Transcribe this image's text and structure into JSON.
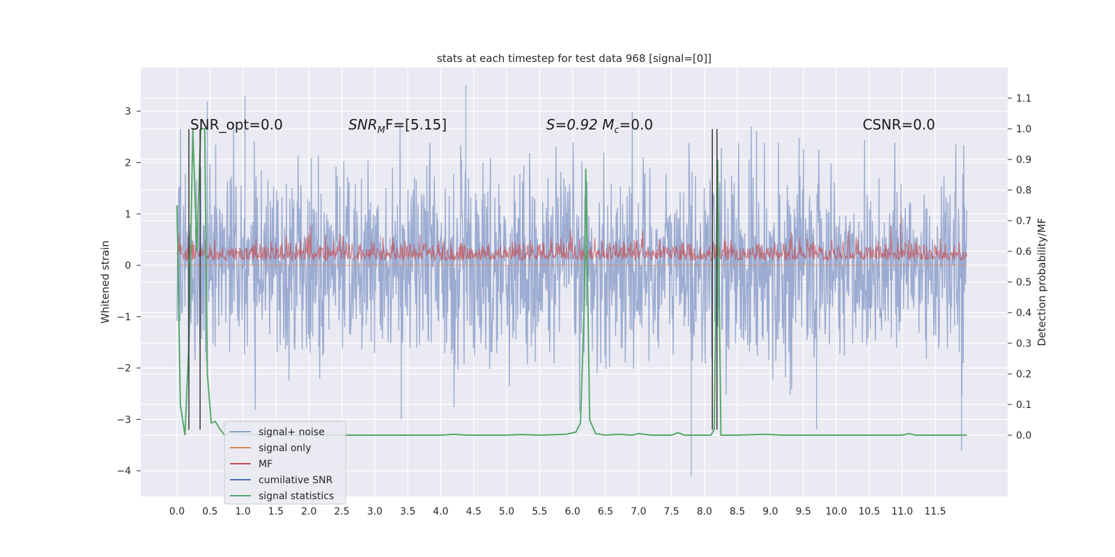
{
  "chart_data": {
    "type": "line",
    "title": "stats at each timestep for test data 968 [signal=[0]]",
    "ylabel": "Whitened strain",
    "ylabel_right": "Detection probability/MF",
    "xlim": [
      -0.55,
      12.6
    ],
    "ylim": [
      -4.5,
      3.85
    ],
    "ylim_right": [
      -0.2,
      1.2
    ],
    "x_ticks": [
      0.0,
      0.5,
      1.0,
      1.5,
      2.0,
      2.5,
      3.0,
      3.5,
      4.0,
      4.5,
      5.0,
      5.5,
      6.0,
      6.5,
      7.0,
      7.5,
      8.0,
      8.5,
      9.0,
      9.5,
      10.0,
      10.5,
      11.0,
      11.5
    ],
    "x_tick_labels": [
      "0.0",
      "0.5",
      "1.0",
      "1.5",
      "2.0",
      "2.5",
      "3.0",
      "3.5",
      "4.0",
      "4.5",
      "5.0",
      "5.5",
      "6.0",
      "6.5",
      "7.0",
      "7.5",
      "8.0",
      "8.5",
      "9.0",
      "9.5",
      "10.0",
      "10.5",
      "11.0",
      "11.5"
    ],
    "y_ticks": [
      3,
      2,
      1,
      0,
      -1,
      -2,
      -3,
      -4
    ],
    "y_tick_labels": [
      "3",
      "2",
      "1",
      "0",
      "−1",
      "−2",
      "−3",
      "−4"
    ],
    "y_right_ticks": [
      1.1,
      1.0,
      0.9,
      0.8,
      0.7,
      0.6,
      0.5,
      0.4,
      0.3,
      0.2,
      0.1,
      0.0
    ],
    "y_right_tick_labels": [
      "1.1",
      "1.0",
      "0.9",
      "0.8",
      "0.7",
      "0.6",
      "0.5",
      "0.4",
      "0.3",
      "0.2",
      "0.1",
      "0.0"
    ],
    "grid": true,
    "annotations": [
      {
        "text": "SNR_opt=0.0",
        "x": 0.2,
        "y": 2.75
      },
      {
        "text": "SNR_MF=[5.15]",
        "x": 2.6,
        "y": 2.75
      },
      {
        "text": "S=0.92   M_c=0.0",
        "x": 5.6,
        "y": 2.75
      },
      {
        "text": "CSNR=0.0",
        "x": 10.4,
        "y": 2.75
      }
    ],
    "colors": {
      "noise": "#8da0cb",
      "signal": "#dd8452",
      "mf": "#c44e52",
      "cumulative": "#4c72b0",
      "stats": "#55a868",
      "vlines": "#333333",
      "axes_bg": "#eaeaf2"
    },
    "series": [
      {
        "name": "signal+ noise",
        "axis": "left",
        "x_range": [
          0.0,
          11.98
        ],
        "envelope_typical": [
          -2.4,
          2.4
        ],
        "extremes": [
          {
            "x": 0.46,
            "y": 3.2
          },
          {
            "x": 4.38,
            "y": 3.5
          },
          {
            "x": 1.03,
            "y": 3.3
          },
          {
            "x": 7.8,
            "y": -4.1
          },
          {
            "x": 11.9,
            "y": -3.6
          },
          {
            "x": 3.4,
            "y": -3.0
          },
          {
            "x": 9.7,
            "y": -3.2
          }
        ]
      },
      {
        "name": "signal only",
        "axis": "left",
        "x": [
          0.0,
          11.98
        ],
        "y": [
          0.0,
          0.0
        ]
      },
      {
        "name": "MF",
        "axis": "right",
        "baseline": 0.6,
        "x_range": [
          0.0,
          11.98
        ],
        "envelope_typical": [
          0.55,
          0.68
        ],
        "spikes": [
          {
            "x": 10.98,
            "y": 0.72
          }
        ]
      },
      {
        "name": "cumilative SNR",
        "axis": "right",
        "x": [],
        "y": []
      },
      {
        "name": "signal statistics",
        "axis": "right",
        "x": [
          0.0,
          0.05,
          0.12,
          0.18,
          0.24,
          0.3,
          0.36,
          0.42,
          0.46,
          0.52,
          0.58,
          0.65,
          0.72,
          0.8,
          1.0,
          1.5,
          2.0,
          3.0,
          4.0,
          4.2,
          4.4,
          5.0,
          5.2,
          5.5,
          5.9,
          6.05,
          6.12,
          6.18,
          6.2,
          6.26,
          6.35,
          6.5,
          6.7,
          6.9,
          7.0,
          7.2,
          7.5,
          7.6,
          7.7,
          7.8,
          8.1,
          8.15,
          8.2,
          8.25,
          8.3,
          8.5,
          8.9,
          9.2,
          10.0,
          11.0,
          11.1,
          11.2,
          11.5,
          11.98
        ],
        "y": [
          0.75,
          0.1,
          0.0,
          0.3,
          1.0,
          0.6,
          1.0,
          1.0,
          0.2,
          0.04,
          0.045,
          0.02,
          0.0,
          0.01,
          0.003,
          0.0,
          0.0,
          0.0,
          0.0,
          0.003,
          0.0,
          0.0,
          0.002,
          0.0,
          0.003,
          0.01,
          0.04,
          0.45,
          0.87,
          0.05,
          0.005,
          0.0,
          0.003,
          0.0,
          0.005,
          0.0,
          0.0,
          0.008,
          0.0,
          0.0,
          0.0,
          0.02,
          0.9,
          0.0,
          0.0,
          0.0,
          0.003,
          0.0,
          0.0,
          0.0,
          0.005,
          0.0,
          0.0,
          0.0
        ]
      }
    ],
    "vlines": [
      {
        "x": 0.18,
        "ymin": -3.2,
        "ymax": 2.65
      },
      {
        "x": 0.35,
        "ymin": -3.2,
        "ymax": 2.65
      },
      {
        "x": 8.12,
        "ymin": -3.2,
        "ymax": 2.65
      },
      {
        "x": 8.19,
        "ymin": -3.2,
        "ymax": 2.65
      }
    ],
    "legend": {
      "placement": "lower-left",
      "entries": [
        {
          "label": "signal+ noise",
          "color": "#8da0cb"
        },
        {
          "label": "signal only",
          "color": "#dd8452"
        },
        {
          "label": "MF",
          "color": "#c44e52"
        },
        {
          "label": "cumilative SNR",
          "color": "#4c72b0"
        },
        {
          "label": "signal statistics",
          "color": "#55a868"
        }
      ]
    }
  }
}
